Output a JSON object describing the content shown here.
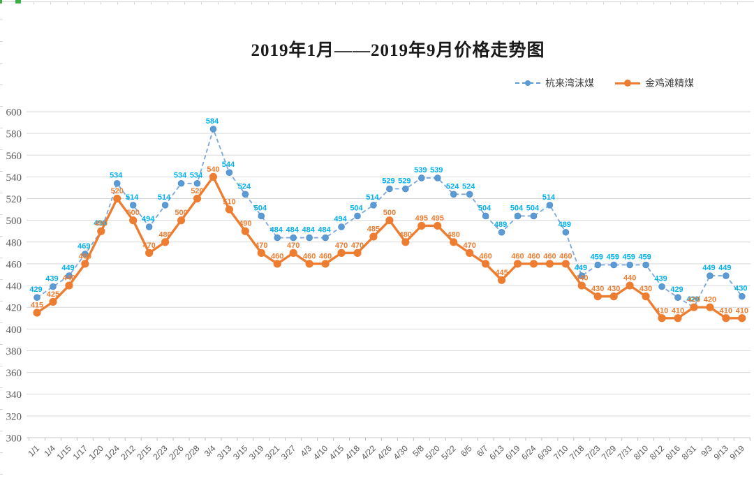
{
  "title": "2019年1月——2019年9月价格走势图",
  "chart_data": {
    "type": "line",
    "title": "2019年1月——2019年9月价格走势图",
    "categories": [
      "1/1",
      "1/4",
      "1/15",
      "1/17",
      "1/20",
      "1/24",
      "2/12",
      "2/15",
      "2/23",
      "2/26",
      "2/28",
      "3/4",
      "3/13",
      "3/15",
      "3/19",
      "3/21",
      "3/27",
      "4/3",
      "4/10",
      "4/15",
      "4/18",
      "4/22",
      "4/26",
      "4/30",
      "5/8",
      "5/20",
      "5/22",
      "6/5",
      "6/7",
      "6/13",
      "6/19",
      "6/24",
      "6/30",
      "7/10",
      "7/18",
      "7/23",
      "7/29",
      "7/31",
      "8/10",
      "8/12",
      "8/16",
      "8/31",
      "9/3",
      "9/13",
      "9/19"
    ],
    "series": [
      {
        "name": "杭来湾沫煤",
        "line_style": "dashed",
        "line_color": "#7CA7DB",
        "marker_color": "#5B9BD5",
        "label_color": "#00B0F0",
        "values": [
          429,
          439,
          449,
          469,
          490,
          534,
          514,
          494,
          514,
          534,
          534,
          584,
          544,
          524,
          504,
          484,
          484,
          484,
          484,
          494,
          504,
          514,
          529,
          529,
          539,
          539,
          524,
          524,
          504,
          489,
          504,
          504,
          514,
          489,
          449,
          459,
          459,
          459,
          459,
          439,
          429,
          420,
          449,
          449,
          430
        ]
      },
      {
        "name": "金鸡滩精煤",
        "line_style": "solid",
        "line_color": "#ED7D31",
        "marker_color": "#ED7D31",
        "label_color": "#ED7D31",
        "values": [
          415,
          425,
          440,
          460,
          490,
          520,
          500,
          470,
          480,
          500,
          520,
          540,
          510,
          490,
          470,
          460,
          470,
          460,
          460,
          470,
          470,
          485,
          500,
          480,
          495,
          495,
          480,
          470,
          460,
          445,
          460,
          460,
          460,
          460,
          440,
          430,
          430,
          440,
          430,
          410,
          410,
          420,
          420,
          410,
          410
        ]
      }
    ],
    "ylim": [
      300,
      600
    ],
    "y_ticks": [
      600,
      580,
      560,
      540,
      520,
      500,
      480,
      460,
      440,
      420,
      400,
      380,
      360,
      340,
      320,
      300
    ],
    "xlabel": "",
    "ylabel": "",
    "grid": true,
    "legend_position": "top-right",
    "grid_color": "#D9D9D9",
    "axis_text_color": "#595959",
    "data_labels": true
  }
}
